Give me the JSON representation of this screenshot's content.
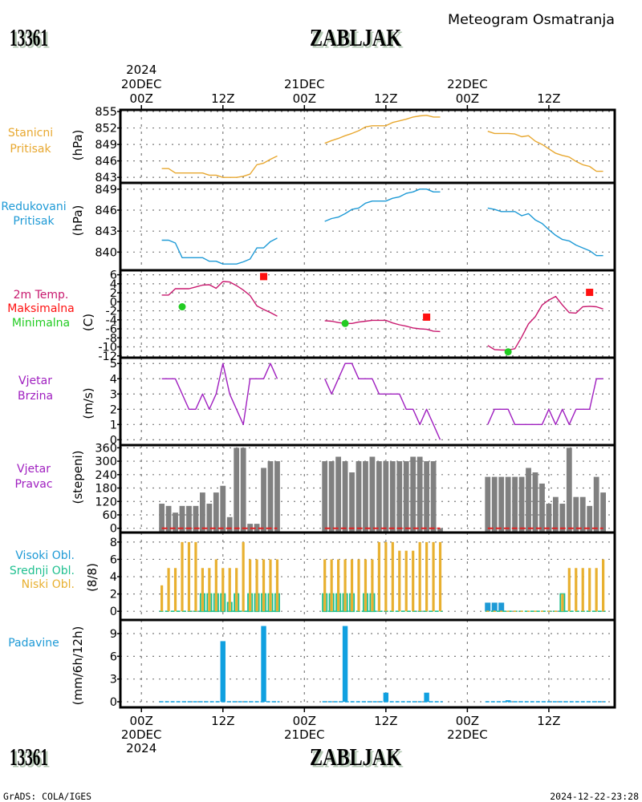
{
  "header": {
    "station_id": "13361",
    "station_name": "ZABLJAK",
    "product_title": "Meteogram Osmatranja"
  },
  "footer": {
    "station_id": "13361",
    "station_name": "ZABLJAK",
    "software": "GrADS: COLA/IGES",
    "timestamp": "2024-12-22-23:28"
  },
  "time_axis": {
    "unit": "hours since 2024-12-20 00Z",
    "xlim": [
      -3.1,
      69.7
    ],
    "gridline_hours": [
      0,
      12,
      24,
      36,
      48,
      60
    ],
    "segments": [
      {
        "start_hour": 3,
        "end_hour": 20
      },
      {
        "start_hour": 27,
        "end_hour": 44
      },
      {
        "start_hour": 51,
        "end_hour": 68
      }
    ],
    "top_labels": [
      {
        "hour": 0,
        "lines": [
          "2024",
          "20DEC",
          "00Z"
        ]
      },
      {
        "hour": 12,
        "lines": [
          "12Z"
        ]
      },
      {
        "hour": 24,
        "lines": [
          "21DEC",
          "00Z"
        ]
      },
      {
        "hour": 36,
        "lines": [
          "12Z"
        ]
      },
      {
        "hour": 48,
        "lines": [
          "22DEC",
          "00Z"
        ]
      },
      {
        "hour": 60,
        "lines": [
          "12Z"
        ]
      }
    ],
    "bottom_labels": [
      {
        "hour": 0,
        "lines": [
          "00Z",
          "20DEC",
          "2024"
        ]
      },
      {
        "hour": 12,
        "lines": [
          "12Z"
        ]
      },
      {
        "hour": 24,
        "lines": [
          "00Z",
          "21DEC"
        ]
      },
      {
        "hour": 36,
        "lines": [
          "12Z"
        ]
      },
      {
        "hour": 48,
        "lines": [
          "00Z",
          "22DEC"
        ]
      },
      {
        "hour": 60,
        "lines": [
          "12Z"
        ]
      }
    ]
  },
  "chart_data": [
    {
      "id": "station-pressure",
      "type": "line",
      "title_lines": [
        {
          "text": "Stanicni",
          "color": "#e8a830"
        },
        {
          "text": "Pritisak",
          "color": "#e8a830"
        }
      ],
      "ylabel": "(hPa)",
      "ylim": [
        842.0,
        855.3
      ],
      "yticks": [
        843,
        846,
        849,
        852,
        855
      ],
      "ytick_labels": [
        "843",
        "846",
        "849",
        "852",
        "855"
      ],
      "grid": true,
      "series": [
        {
          "id": "station",
          "name": "Stanicni Pritisak",
          "kind": "line",
          "color": "#e8a830",
          "segments": [
            [
              844.6,
              844.6,
              843.8,
              843.8,
              843.8,
              843.8,
              843.8,
              843.4,
              843.4,
              843.0,
              843.0,
              843.0,
              843.2,
              843.6,
              845.3,
              845.6,
              846.3,
              846.9
            ],
            [
              849.2,
              849.7,
              850.1,
              850.6,
              851.0,
              851.5,
              852.2,
              852.4,
              852.4,
              852.4,
              853.0,
              853.3,
              853.6,
              854.0,
              854.2,
              854.3,
              854.0,
              854.0
            ],
            [
              851.4,
              851.0,
              851.0,
              851.0,
              850.9,
              850.4,
              850.6,
              849.6,
              849.0,
              848.2,
              847.4,
              847.0,
              846.7,
              845.9,
              845.3,
              845.0,
              844.1,
              844.1
            ]
          ]
        }
      ]
    },
    {
      "id": "reduced-pressure",
      "type": "line",
      "title_lines": [
        {
          "text": "Redukovani",
          "color": "#1e9ad6"
        },
        {
          "text": "Pritisak",
          "color": "#1e9ad6"
        }
      ],
      "ylabel": "(hPa)",
      "ylim": [
        837.4,
        849.9
      ],
      "yticks": [
        840,
        843,
        846,
        849
      ],
      "ytick_labels": [
        "840",
        "843",
        "846",
        "849"
      ],
      "grid": true,
      "series": [
        {
          "id": "reduced",
          "name": "Redukovani Pritisak",
          "kind": "line",
          "color": "#1e9ad6",
          "segments": [
            [
              841.7,
              841.7,
              841.3,
              839.2,
              839.2,
              839.2,
              839.2,
              838.7,
              838.7,
              838.3,
              838.3,
              838.3,
              838.6,
              839.0,
              840.6,
              840.6,
              841.5,
              842.0
            ],
            [
              844.4,
              844.8,
              845.0,
              845.5,
              846.1,
              846.3,
              847.0,
              847.3,
              847.3,
              847.3,
              847.7,
              847.9,
              848.4,
              848.6,
              849.0,
              849.0,
              848.6,
              848.6
            ],
            [
              846.3,
              846.1,
              845.8,
              845.8,
              845.8,
              845.2,
              845.5,
              844.6,
              844.1,
              843.2,
              842.4,
              841.8,
              841.6,
              841.0,
              840.6,
              840.2,
              839.5,
              839.5
            ]
          ]
        }
      ]
    },
    {
      "id": "temperature",
      "type": "line",
      "title_lines": [
        {
          "text": "2m Temp.",
          "color": "#c8186e"
        },
        {
          "text": "Maksimalna",
          "color": "#ff1010"
        },
        {
          "text": "Minimalna",
          "color": "#22cc22"
        }
      ],
      "ylabel": "(C)",
      "ylim": [
        -12.4,
        7.0
      ],
      "yticks": [
        -12,
        -10,
        -8,
        -6,
        -4,
        -2,
        0,
        2,
        4,
        6
      ],
      "ytick_labels": [
        "-12",
        "-10",
        "-8",
        "-6",
        "-4",
        "-2",
        "0",
        "2",
        "4",
        "6"
      ],
      "grid": true,
      "series": [
        {
          "id": "temp-2m",
          "name": "2m Temp.",
          "kind": "line",
          "color": "#c8186e",
          "segments": [
            [
              1.5,
              1.5,
              2.9,
              2.9,
              2.9,
              3.3,
              3.7,
              3.8,
              3.0,
              4.5,
              4.4,
              3.6,
              2.6,
              1.4,
              -0.9,
              -1.7,
              -2.4,
              -3.2
            ],
            [
              -4.2,
              -4.3,
              -4.6,
              -4.8,
              -4.8,
              -4.5,
              -4.3,
              -4.1,
              -4.1,
              -4.1,
              -4.7,
              -5.1,
              -5.4,
              -5.8,
              -6.0,
              -6.1,
              -6.5,
              -6.6
            ],
            [
              -9.7,
              -10.6,
              -10.7,
              -10.7,
              -10.4,
              -7.8,
              -4.9,
              -3.3,
              -0.7,
              0.4,
              1.2,
              -0.7,
              -2.4,
              -2.5,
              -1.1,
              -1.0,
              -1.1,
              -1.6
            ]
          ]
        },
        {
          "id": "temp-max",
          "name": "Maksimalna",
          "kind": "markers",
          "color": "#ff1010",
          "points": [
            {
              "hour": 18,
              "value": 5.6
            },
            {
              "hour": 42,
              "value": -3.4
            },
            {
              "hour": 66,
              "value": 2.1
            }
          ]
        },
        {
          "id": "temp-min",
          "name": "Minimalna",
          "kind": "markers",
          "color": "#22cc22",
          "points": [
            {
              "hour": 6,
              "value": -1.1
            },
            {
              "hour": 30,
              "value": -4.8
            },
            {
              "hour": 54,
              "value": -11.1
            }
          ]
        }
      ]
    },
    {
      "id": "wind-speed",
      "type": "line",
      "title_lines": [
        {
          "text": "Vjetar",
          "color": "#a020c0"
        },
        {
          "text": "Brzina",
          "color": "#a020c0"
        }
      ],
      "ylabel": "(m/s)",
      "ylim": [
        -0.35,
        5.38
      ],
      "yticks": [
        0,
        1,
        2,
        3,
        4,
        5
      ],
      "ytick_labels": [
        "0",
        "1",
        "2",
        "3",
        "4",
        "5"
      ],
      "grid": true,
      "series": [
        {
          "id": "speed",
          "name": "Vjetar Brzina",
          "kind": "line",
          "color": "#a020c0",
          "segments": [
            [
              4,
              4,
              4,
              3,
              2,
              2,
              3,
              2,
              3,
              5,
              3,
              2,
              1,
              4,
              4,
              4,
              5,
              4
            ],
            [
              4,
              3,
              4,
              5,
              5,
              4,
              4,
              4,
              3,
              3,
              3,
              3,
              2,
              2,
              1,
              2,
              1,
              0
            ],
            [
              1,
              2,
              2,
              2,
              1,
              1,
              1,
              1,
              1,
              2,
              1,
              2,
              1,
              2,
              2,
              2,
              4,
              4
            ]
          ]
        }
      ]
    },
    {
      "id": "wind-direction",
      "type": "bar",
      "title_lines": [
        {
          "text": "Vjetar",
          "color": "#a020c0"
        },
        {
          "text": "Pravac",
          "color": "#a020c0"
        }
      ],
      "ylabel": "(stepeni)",
      "ylim": [
        -19,
        372
      ],
      "yticks": [
        0,
        60,
        120,
        180,
        240,
        300,
        360
      ],
      "ytick_labels": [
        "0",
        "60",
        "120",
        "180",
        "240",
        "300",
        "360"
      ],
      "grid": true,
      "series": [
        {
          "id": "direction",
          "name": "Vjetar Pravac",
          "kind": "bar",
          "color": "#808080",
          "segments": [
            [
              110,
              100,
              70,
              100,
              100,
              100,
              160,
              110,
              160,
              190,
              50,
              360,
              360,
              20,
              20,
              270,
              300,
              300
            ],
            [
              300,
              300,
              320,
              300,
              250,
              300,
              300,
              320,
              300,
              300,
              300,
              300,
              300,
              320,
              320,
              300,
              300,
              0
            ],
            [
              230,
              230,
              230,
              230,
              230,
              230,
              270,
              250,
              200,
              110,
              140,
              110,
              360,
              140,
              140,
              100,
              230,
              160
            ]
          ]
        },
        {
          "id": "zero-ref",
          "name": "reference line",
          "kind": "reference-line",
          "color": "#e02020",
          "value": 0
        }
      ]
    },
    {
      "id": "clouds",
      "type": "bar",
      "title_lines": [
        {
          "text": "Visoki Obl.",
          "color": "#1e9ad6"
        },
        {
          "text": "Srednji Obl.",
          "color": "#20c090"
        },
        {
          "text": "Niski Obl.",
          "color": "#e8b030"
        }
      ],
      "ylabel": "(8/8)",
      "ylim": [
        -1.0,
        9.1
      ],
      "yticks": [
        0,
        2,
        4,
        6,
        8
      ],
      "ytick_labels": [
        "0",
        "2",
        "4",
        "6",
        "8"
      ],
      "grid": true,
      "series": [
        {
          "id": "high",
          "name": "Visoki Obl.",
          "kind": "bar",
          "color": "#1e9ad6",
          "segments": [
            [
              0,
              0,
              0,
              0,
              0,
              0,
              0,
              0,
              0,
              0,
              0,
              0,
              0,
              0,
              0,
              0,
              0,
              0
            ],
            [
              0,
              0,
              0,
              0,
              0,
              0,
              0,
              0,
              0,
              0,
              0,
              0,
              0,
              0,
              0,
              0,
              0,
              0
            ],
            [
              1,
              1,
              1,
              0,
              0,
              0,
              0,
              0,
              0,
              0,
              0,
              0,
              0,
              0,
              0,
              0,
              0,
              0
            ]
          ]
        },
        {
          "id": "middle",
          "name": "Srednji Obl.",
          "kind": "bar",
          "color": "#20c090",
          "segments": [
            [
              0,
              0,
              0,
              0,
              0,
              0,
              2,
              2,
              2,
              2,
              1,
              2,
              0,
              2,
              2,
              2,
              2,
              2
            ],
            [
              2,
              2,
              2,
              2,
              2,
              0,
              2,
              2,
              0,
              0,
              0,
              0,
              0,
              0,
              0,
              0,
              0,
              0
            ],
            [
              0,
              0,
              0,
              0,
              0,
              0,
              0,
              0,
              0,
              0,
              0,
              2,
              0,
              0,
              0,
              0,
              0,
              0
            ]
          ]
        },
        {
          "id": "low",
          "name": "Niski Obl.",
          "kind": "bar",
          "color": "#e8b030",
          "segments": [
            [
              3,
              5,
              5,
              8,
              8,
              8,
              5,
              5,
              6,
              5,
              5,
              5,
              8,
              6,
              6,
              6,
              6,
              6
            ],
            [
              6,
              6,
              6,
              6,
              6,
              6,
              6,
              6,
              8,
              8,
              8,
              7,
              7,
              7,
              8,
              8,
              8,
              8
            ],
            [
              0,
              0,
              0,
              0,
              0,
              0,
              0,
              0,
              0,
              0,
              0,
              2,
              5,
              5,
              5,
              5,
              5,
              6
            ]
          ]
        }
      ]
    },
    {
      "id": "precipitation",
      "type": "bar",
      "title_lines": [
        {
          "text": "Padavine",
          "color": "#1e9ad6"
        }
      ],
      "ylabel": "(mm/6h/12h)",
      "ylim": [
        -0.74,
        10.8
      ],
      "yticks": [
        0,
        3,
        6,
        9
      ],
      "ytick_labels": [
        "0",
        "3",
        "6",
        "9"
      ],
      "grid": true,
      "series": [
        {
          "id": "precip",
          "name": "Padavine",
          "kind": "bar",
          "color": "#10a0e0",
          "segments": [
            [
              0,
              0,
              0,
              0,
              0,
              0,
              0,
              0,
              0,
              8.0,
              0,
              0,
              0,
              0,
              0,
              10.0,
              0,
              0
            ],
            [
              0,
              0,
              0,
              10.0,
              0,
              0,
              0,
              0,
              0,
              1.2,
              0,
              0,
              0,
              0,
              0,
              1.2,
              0,
              0
            ],
            [
              0,
              0,
              0,
              0.2,
              0,
              0,
              0,
              0,
              0,
              0,
              0,
              0,
              0,
              0,
              0,
              0,
              0,
              0
            ]
          ]
        }
      ]
    }
  ]
}
